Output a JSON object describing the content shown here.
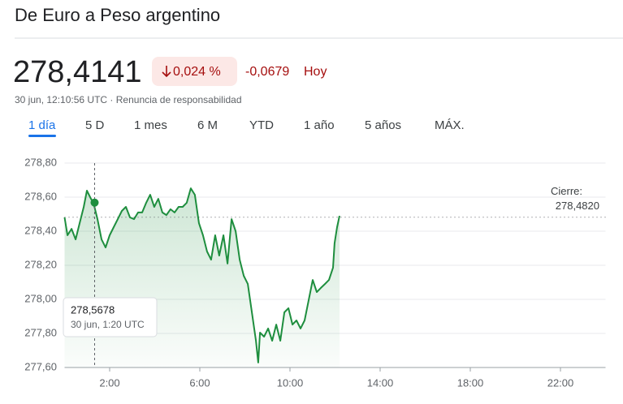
{
  "header": {
    "title": "De Euro a Peso argentino",
    "price": "278,4141",
    "change_pct": "0,024 %",
    "change_abs": "-0,0679",
    "period": "Hoy",
    "timestamp": "30 jun, 12:10:56 UTC",
    "disclaimer": "Renuncia de responsabilidad"
  },
  "tabs": [
    "1 día",
    "5 D",
    "1 mes",
    "6 M",
    "YTD",
    "1 año",
    "5 años",
    "MÁX."
  ],
  "chart_data": {
    "type": "line",
    "color": "#1e8e3e",
    "x": [
      0,
      0.13,
      0.31,
      0.49,
      0.67,
      0.85,
      0.99,
      1.17,
      1.28,
      1.46,
      1.64,
      1.82,
      2.0,
      2.18,
      2.36,
      2.54,
      2.72,
      2.9,
      3.08,
      3.26,
      3.44,
      3.62,
      3.8,
      3.98,
      4.16,
      4.34,
      4.52,
      4.7,
      4.88,
      5.06,
      5.24,
      5.42,
      5.6,
      5.78,
      5.96,
      6.14,
      6.32,
      6.5,
      6.68,
      6.86,
      7.05,
      7.23,
      7.41,
      7.59,
      7.77,
      7.95,
      8.13,
      8.31,
      8.49,
      8.59,
      8.67,
      8.85,
      9.03,
      9.21,
      9.39,
      9.57,
      9.75,
      9.93,
      10.11,
      10.29,
      10.47,
      10.65,
      10.83,
      11.01,
      11.19,
      11.37,
      11.55,
      11.73,
      11.91,
      11.98,
      12.09,
      12.2
    ],
    "values": [
      278.481,
      278.376,
      278.414,
      278.352,
      278.448,
      278.543,
      278.638,
      278.59,
      278.568,
      278.471,
      278.352,
      278.305,
      278.376,
      278.424,
      278.471,
      278.519,
      278.543,
      278.481,
      278.471,
      278.51,
      278.51,
      278.567,
      278.614,
      278.543,
      278.59,
      278.51,
      278.495,
      278.529,
      278.51,
      278.543,
      278.543,
      278.567,
      278.652,
      278.614,
      278.448,
      278.376,
      278.281,
      278.233,
      278.376,
      278.257,
      278.376,
      278.21,
      278.471,
      278.4,
      278.233,
      278.138,
      278.09,
      277.924,
      277.757,
      277.629,
      277.805,
      277.781,
      277.829,
      277.757,
      277.852,
      277.757,
      277.924,
      277.948,
      277.852,
      277.876,
      277.829,
      277.876,
      277.995,
      278.114,
      278.043,
      278.067,
      278.09,
      278.114,
      278.186,
      278.329,
      278.424,
      278.49
    ],
    "xlim": [
      0,
      24
    ],
    "xticks": [
      {
        "value": 2,
        "label": "2:00"
      },
      {
        "value": 6,
        "label": "6:00"
      },
      {
        "value": 10,
        "label": "10:00"
      },
      {
        "value": 14,
        "label": "14:00"
      },
      {
        "value": 18,
        "label": "18:00"
      },
      {
        "value": 22,
        "label": "22:00"
      }
    ],
    "ylim": [
      277.6,
      278.8
    ],
    "yticks": [
      {
        "value": 277.6,
        "label": "277,60"
      },
      {
        "value": 277.8,
        "label": "277,80"
      },
      {
        "value": 278.0,
        "label": "278,00"
      },
      {
        "value": 278.2,
        "label": "278,20"
      },
      {
        "value": 278.4,
        "label": "278,40"
      },
      {
        "value": 278.6,
        "label": "278,60"
      },
      {
        "value": 278.8,
        "label": "278,80"
      }
    ],
    "grid": true,
    "previous_close": {
      "label": "Cierre:",
      "value": 278.482,
      "value_label": "278,4820"
    },
    "tooltip": {
      "x": 1.333,
      "value": 278.5678,
      "value_label": "278,5678",
      "date_label": "30 jun, 1:20 UTC"
    }
  }
}
